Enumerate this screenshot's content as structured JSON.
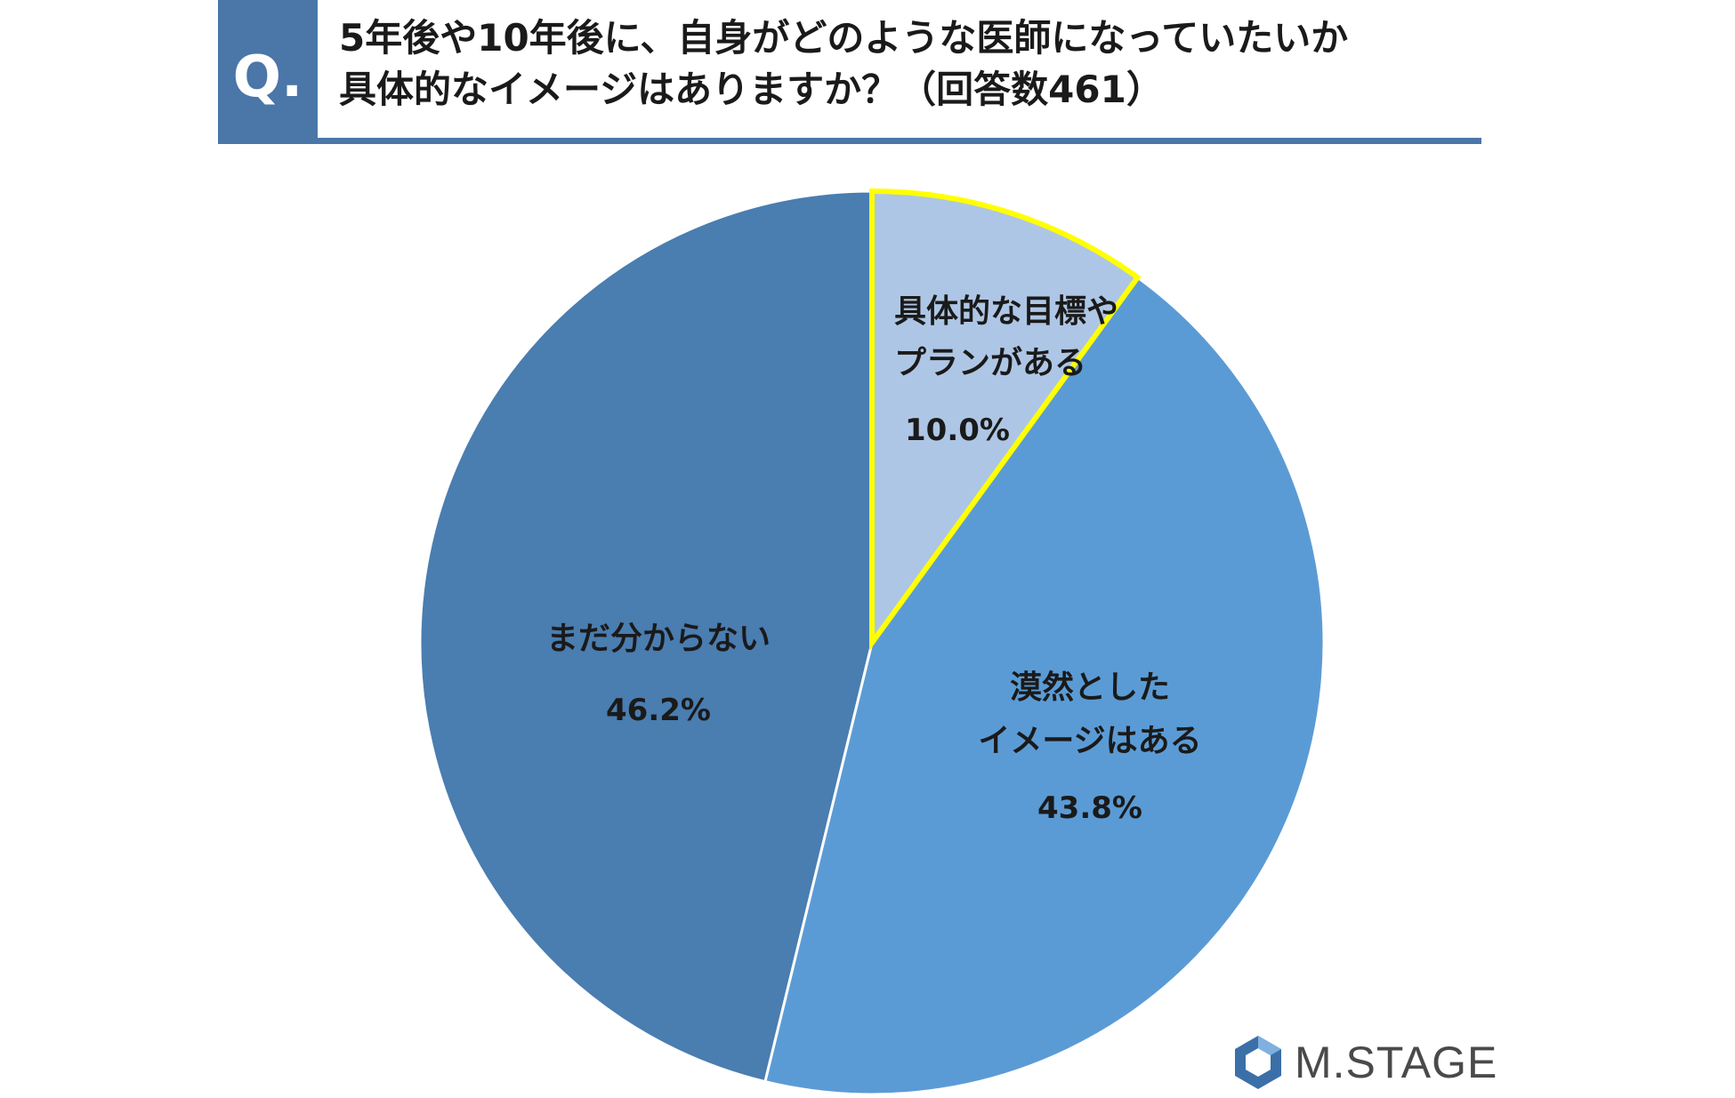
{
  "header": {
    "q_mark": "Q.",
    "title_line1": "5年後や10年後に、自身がどのような医師になっていたいか",
    "title_line2": "具体的なイメージはありますか？（回答数461）"
  },
  "chart_data": {
    "type": "pie",
    "start_angle_deg": 0,
    "direction": "clockwise",
    "slices": [
      {
        "label_lines": [
          "具体的な目標や",
          "プランがある"
        ],
        "value_label": "10.0%",
        "value": 10.0,
        "color": "#aec6e5",
        "stroke": "#ffff00",
        "stroke_width": 6
      },
      {
        "label_lines": [
          "漠然とした",
          "イメージはある"
        ],
        "value_label": "43.8%",
        "value": 43.8,
        "color": "#5b9bd5",
        "stroke": "#ffffff",
        "stroke_width": 3
      },
      {
        "label_lines": [
          "まだ分からない"
        ],
        "value_label": "46.2%",
        "value": 46.2,
        "color": "#4a7db0",
        "stroke": "#ffffff",
        "stroke_width": 3
      }
    ]
  },
  "logo": {
    "text": "M.STAGE",
    "icon": "mstage-hexagon-logo-icon"
  }
}
